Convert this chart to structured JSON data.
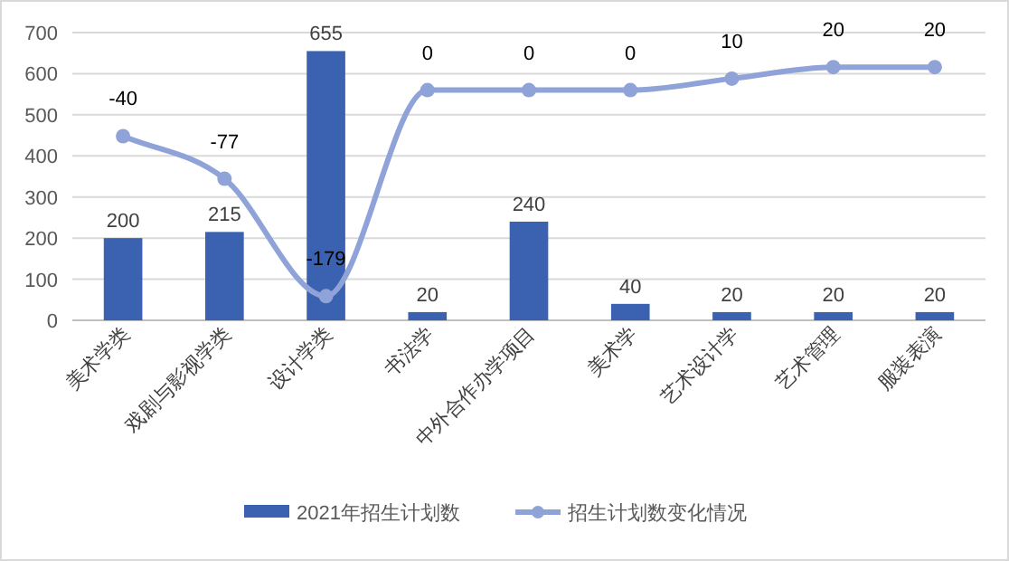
{
  "chart_data": {
    "type": "bar",
    "categories": [
      "美术学类",
      "戏剧与影视学类",
      "设计学类",
      "书法学",
      "中外合作办学项目",
      "美术学",
      "艺术设计学",
      "艺术管理",
      "服装表演"
    ],
    "series": [
      {
        "name": "2021年招生计划数",
        "color": "#3a62b0",
        "values": [
          200,
          215,
          655,
          20,
          240,
          40,
          20,
          20,
          20
        ]
      },
      {
        "name": "招生计划数变化情况",
        "type": "line",
        "axis": "y2",
        "color": "#8fa3d8",
        "marker": "circle",
        "values": [
          -40,
          -77,
          -179,
          0,
          0,
          0,
          10,
          20,
          20
        ]
      }
    ],
    "ylim": [
      0,
      700
    ],
    "yticks": [
      0,
      100,
      200,
      300,
      400,
      500,
      600,
      700
    ],
    "y2lim": [
      -200,
      50
    ],
    "grid": "y",
    "legend": "bottom",
    "data_labels": true
  }
}
